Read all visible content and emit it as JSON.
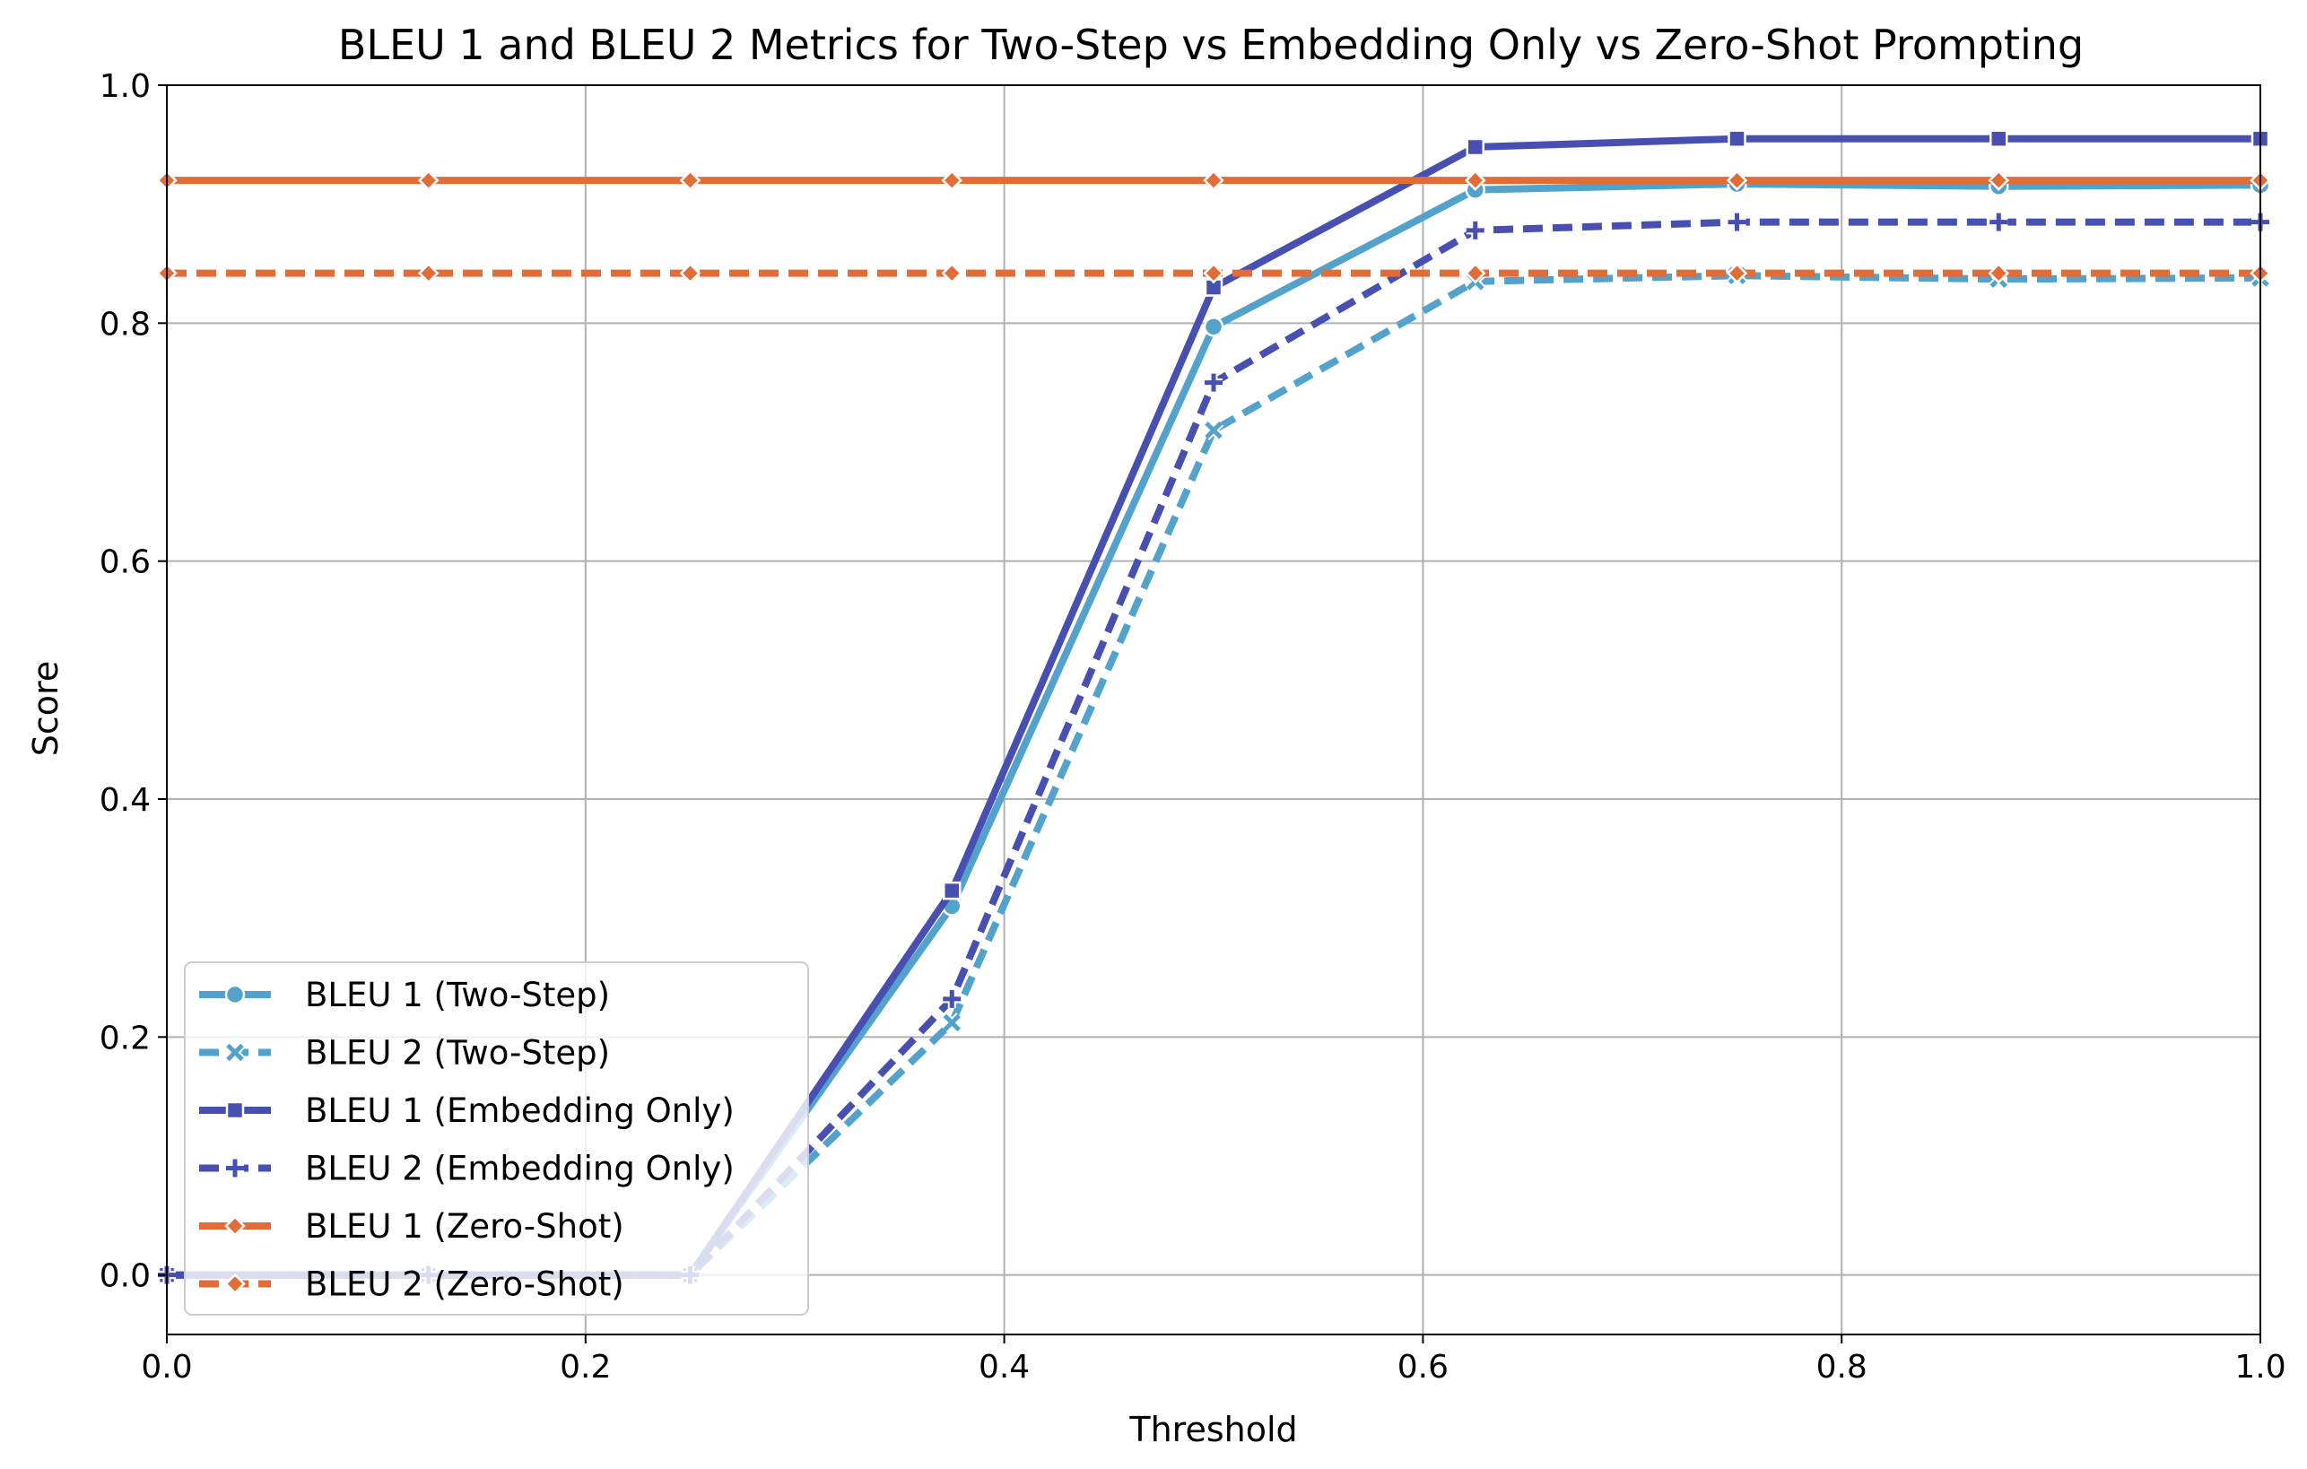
{
  "chart_data": {
    "type": "line",
    "title": "BLEU 1 and BLEU 2 Metrics for Two-Step vs Embedding Only vs Zero-Shot Prompting",
    "xlabel": "Threshold",
    "ylabel": "Score",
    "xlim": [
      0.0,
      1.0
    ],
    "ylim": [
      -0.05,
      1.0
    ],
    "xticks": [
      "0.0",
      "0.2",
      "0.4",
      "0.6",
      "0.8",
      "1.0"
    ],
    "yticks": [
      "0.0",
      "0.2",
      "0.4",
      "0.6",
      "0.8",
      "1.0"
    ],
    "grid": true,
    "legend_position": "lower-left",
    "x": [
      0.0,
      0.125,
      0.25,
      0.375,
      0.5,
      0.625,
      0.75,
      0.875,
      1.0
    ],
    "series": [
      {
        "name": "BLEU 1 (Two-Step)",
        "values": [
          0.0,
          0.0,
          0.0,
          0.31,
          0.797,
          0.912,
          0.917,
          0.915,
          0.916
        ],
        "color": "#52a2cc",
        "dash": "solid",
        "marker": "circle"
      },
      {
        "name": "BLEU 2 (Two-Step)",
        "values": [
          0.0,
          0.0,
          0.0,
          0.212,
          0.71,
          0.835,
          0.84,
          0.837,
          0.838
        ],
        "color": "#52a2cc",
        "dash": "dashed",
        "marker": "x"
      },
      {
        "name": "BLEU 1 (Embedding Only)",
        "values": [
          0.0,
          0.0,
          0.0,
          0.323,
          0.83,
          0.948,
          0.955,
          0.955,
          0.955
        ],
        "color": "#4750b1",
        "dash": "solid",
        "marker": "square"
      },
      {
        "name": "BLEU 2 (Embedding Only)",
        "values": [
          0.0,
          0.0,
          0.0,
          0.232,
          0.75,
          0.878,
          0.885,
          0.885,
          0.885
        ],
        "color": "#4750b1",
        "dash": "dashed",
        "marker": "plus"
      },
      {
        "name": "BLEU 1 (Zero-Shot)",
        "values": [
          0.92,
          0.92,
          0.92,
          0.92,
          0.92,
          0.92,
          0.92,
          0.92,
          0.92
        ],
        "color": "#e26c35",
        "dash": "solid",
        "marker": "diamond"
      },
      {
        "name": "BLEU 2 (Zero-Shot)",
        "values": [
          0.842,
          0.842,
          0.842,
          0.842,
          0.842,
          0.842,
          0.842,
          0.842,
          0.842
        ],
        "color": "#e26c35",
        "dash": "dashed",
        "marker": "diamond"
      }
    ]
  }
}
